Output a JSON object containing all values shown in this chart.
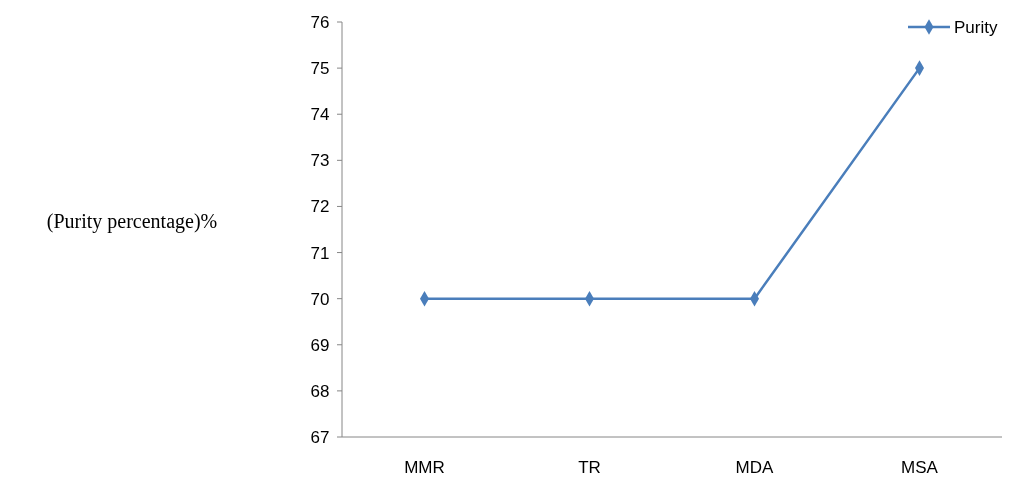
{
  "chart_data": {
    "type": "line",
    "ylabel": "(Purity percentage)%",
    "categories": [
      "MMR",
      "TR",
      "MDA",
      "MSA"
    ],
    "series": [
      {
        "name": "Purity",
        "color": "#4a7ebb",
        "values": [
          70,
          70,
          70,
          75
        ]
      }
    ],
    "ylim": [
      67,
      76
    ],
    "yticks": [
      67,
      68,
      69,
      70,
      71,
      72,
      73,
      74,
      75,
      76
    ],
    "marker": "diamond",
    "line_style": "solid",
    "legend": "top right",
    "grid": false
  }
}
